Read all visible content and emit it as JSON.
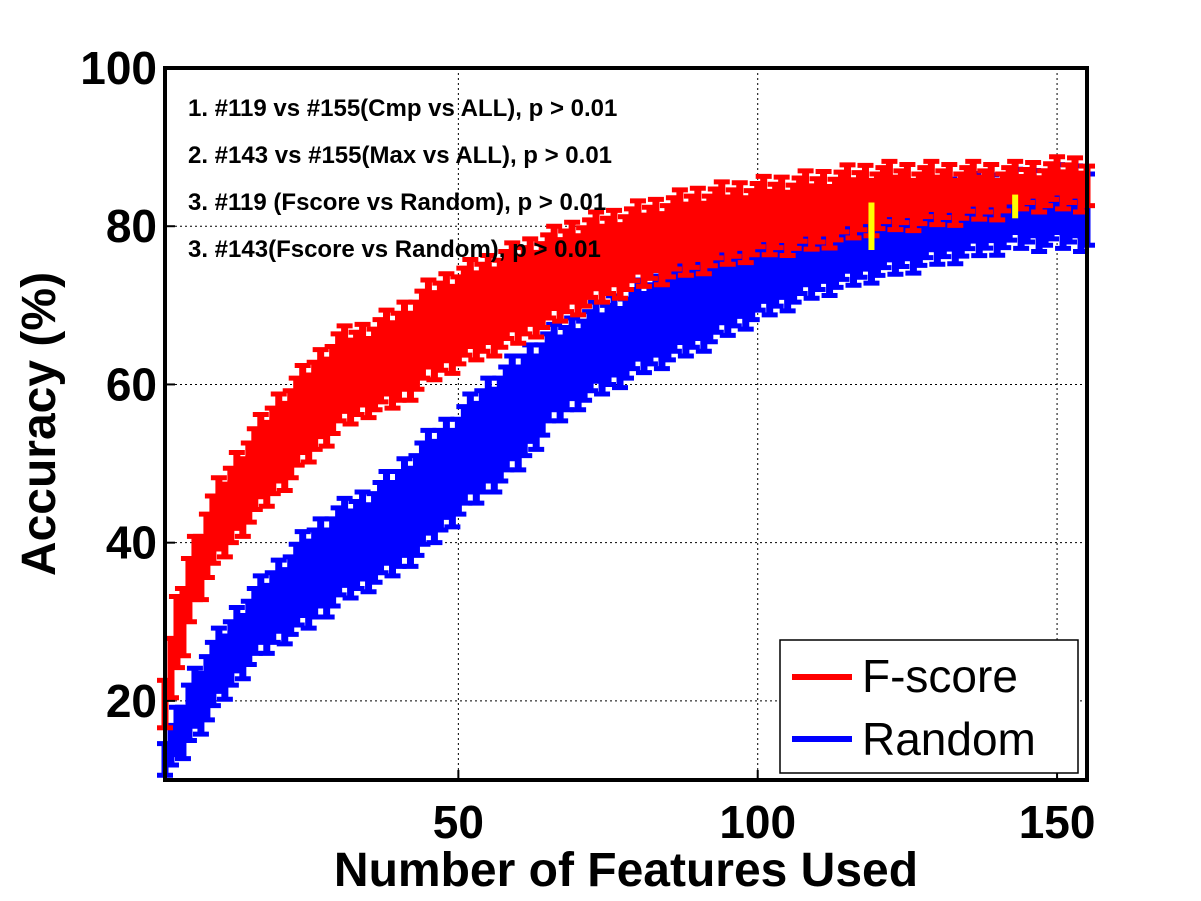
{
  "chart_data": {
    "type": "line",
    "title": "",
    "xlabel": "Number of Features Used",
    "ylabel": "Accuracy (%)",
    "xlim": [
      1,
      155
    ],
    "ylim": [
      10,
      100
    ],
    "xticks": [
      "50",
      "100",
      "150"
    ],
    "yticks": [
      "20",
      "40",
      "60",
      "80",
      "100"
    ],
    "grid": true,
    "legend_position": "bottom-right",
    "annotations": [
      "1. #119 vs #155(Cmp vs ALL), p > 0.01",
      "2. #143 vs #155(Max vs ALL), p > 0.01",
      "3. #119 (Fscore vs Random), p > 0.01",
      "3. #143(Fscore vs Random), p > 0.01"
    ],
    "series": [
      {
        "name": "F-score",
        "color": "#ff0000",
        "x": [
          1,
          3,
          5,
          8,
          10,
          15,
          20,
          25,
          30,
          35,
          40,
          45,
          50,
          60,
          70,
          80,
          90,
          100,
          110,
          119,
          130,
          140,
          143,
          155
        ],
        "low": [
          17,
          23,
          30,
          36,
          38,
          43,
          47,
          51,
          55,
          57,
          58,
          61,
          63,
          66,
          70,
          73,
          75,
          77,
          78,
          80,
          81,
          82,
          83,
          83
        ],
        "high": [
          23,
          32,
          38,
          44,
          47,
          53,
          58,
          62,
          66,
          67,
          69,
          72,
          74,
          77,
          80,
          82,
          84,
          85,
          86,
          87,
          87,
          87,
          87,
          88
        ]
      },
      {
        "name": "Random",
        "color": "#0000ff",
        "x": [
          1,
          3,
          5,
          8,
          10,
          15,
          20,
          25,
          30,
          35,
          40,
          45,
          50,
          55,
          60,
          65,
          70,
          80,
          90,
          100,
          110,
          119,
          130,
          143,
          155
        ],
        "low": [
          11,
          12,
          15,
          18,
          20,
          25,
          28,
          30,
          33,
          35,
          37,
          40,
          44,
          47,
          50,
          55,
          58,
          62,
          65,
          69,
          72,
          74,
          76,
          78,
          78
        ],
        "high": [
          15,
          18,
          22,
          26,
          28,
          33,
          37,
          41,
          44,
          46,
          49,
          53,
          56,
          60,
          63,
          66,
          68,
          72,
          75,
          79,
          82,
          84,
          85,
          86,
          87
        ]
      }
    ],
    "markers": [
      {
        "x": 119,
        "low": 77,
        "high": 83,
        "color": "#ffff00"
      },
      {
        "x": 143,
        "low": 81,
        "high": 84,
        "color": "#ffff00"
      }
    ]
  }
}
